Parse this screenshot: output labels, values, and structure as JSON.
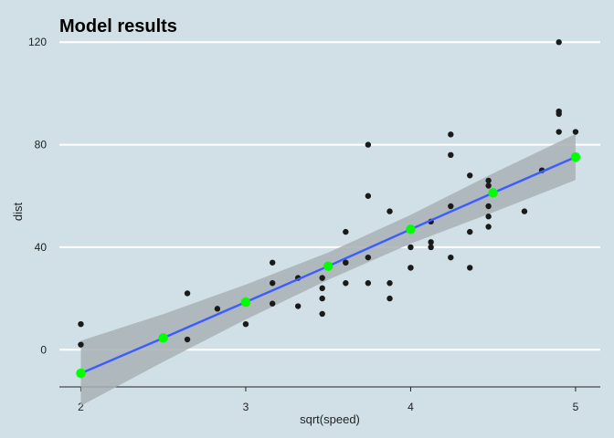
{
  "chart_data": {
    "type": "scatter",
    "title": "Model results",
    "xlabel": "sqrt(speed)",
    "ylabel": "dist",
    "xlim": [
      1.87,
      5.15
    ],
    "ylim": [
      -14.5,
      124
    ],
    "x_ticks": [
      2,
      3,
      4,
      5
    ],
    "y_ticks": [
      0,
      40,
      80,
      120
    ],
    "x_tick_labels": [
      "2",
      "3",
      "4",
      "5"
    ],
    "y_tick_labels": [
      "0",
      "40",
      "80",
      "120"
    ],
    "grid": "horizontal-major",
    "observations": {
      "x": [
        2.0,
        2.0,
        2.646,
        2.646,
        2.828,
        3.0,
        3.162,
        3.162,
        3.162,
        3.317,
        3.317,
        3.464,
        3.464,
        3.464,
        3.464,
        3.606,
        3.606,
        3.606,
        3.606,
        3.742,
        3.742,
        3.742,
        3.742,
        3.873,
        3.873,
        3.873,
        4.0,
        4.0,
        4.0,
        4.123,
        4.123,
        4.123,
        4.243,
        4.243,
        4.243,
        4.243,
        4.359,
        4.359,
        4.359,
        4.472,
        4.472,
        4.472,
        4.472,
        4.472,
        4.69,
        4.796,
        4.899,
        4.899,
        4.899,
        4.899,
        5.0
      ],
      "y": [
        2,
        10,
        4,
        22,
        16,
        10,
        18,
        26,
        34,
        17,
        28,
        14,
        20,
        24,
        28,
        26,
        34,
        34,
        46,
        26,
        36,
        60,
        80,
        20,
        26,
        54,
        32,
        40,
        32,
        40,
        50,
        42,
        56,
        76,
        84,
        36,
        46,
        68,
        32,
        48,
        52,
        56,
        64,
        66,
        54,
        70,
        92,
        93,
        120,
        85,
        85
      ]
    },
    "fit": {
      "x": [
        2,
        2.5,
        3,
        3.5,
        4,
        4.5,
        5
      ],
      "y": [
        -9.2,
        4.6,
        18.6,
        32.6,
        47.0,
        61.2,
        75.2
      ],
      "ci_lower": [
        -21.9,
        -4.7,
        11.8,
        27.3,
        41.4,
        53.6,
        66.2
      ],
      "ci_upper": [
        3.5,
        13.9,
        25.4,
        37.9,
        52.6,
        68.8,
        84.2
      ]
    },
    "colors": {
      "background": "#d0e0e6",
      "gridline": "#ffffff",
      "points": "#1a1a1a",
      "fit_line": "#3b5cff",
      "ci_band": "#a9b0b4",
      "fit_points": "#00ff00"
    }
  }
}
